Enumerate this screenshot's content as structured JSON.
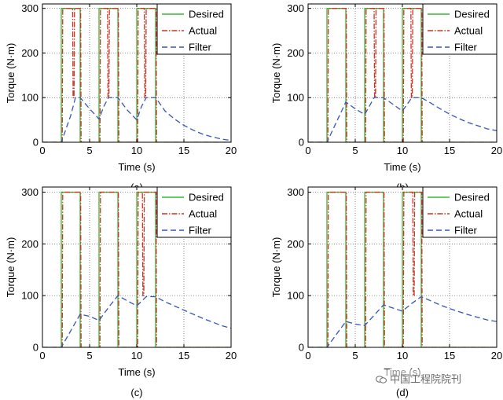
{
  "chart_data": [
    {
      "panel_label": "(a)",
      "type": "line",
      "xlabel": "Time (s)",
      "ylabel": "Torque (N·m)",
      "xlim": [
        0,
        20
      ],
      "ylim": [
        0,
        310
      ],
      "xticks": [
        0,
        5,
        10,
        15,
        20
      ],
      "yticks": [
        0,
        100,
        200,
        300
      ],
      "grid": true,
      "legend_position": "top-right",
      "series": [
        {
          "name": "Desired",
          "color": "#33bb33",
          "style": "solid",
          "x": [
            0,
            2,
            2,
            4,
            4,
            6,
            6,
            8,
            8,
            10,
            10,
            12,
            12,
            20
          ],
          "y": [
            0,
            0,
            300,
            300,
            0,
            0,
            300,
            300,
            0,
            0,
            300,
            300,
            0,
            0
          ]
        },
        {
          "name": "Actual",
          "color": "#cc3322",
          "style": "dashdot",
          "x": [
            0,
            2.1,
            2.15,
            3.2,
            3.25,
            3.35,
            3.4,
            4.05,
            4.1,
            6.1,
            6.15,
            6.9,
            6.95,
            7.05,
            7.1,
            8.05,
            8.1,
            10.1,
            10.15,
            10.8,
            10.85,
            10.95,
            11,
            12.05,
            12.1,
            20
          ],
          "y": [
            0,
            0,
            300,
            300,
            100,
            100,
            300,
            300,
            0,
            0,
            300,
            300,
            100,
            100,
            300,
            300,
            0,
            0,
            300,
            300,
            100,
            100,
            300,
            300,
            0,
            0
          ]
        },
        {
          "name": "Filter",
          "color": "#3355bb",
          "style": "dashed",
          "x": [
            0,
            2,
            3,
            3.5,
            4,
            5,
            6,
            6.5,
            7,
            8,
            9,
            10,
            10.5,
            11,
            12,
            13,
            14,
            15,
            16,
            17,
            18,
            19,
            20
          ],
          "y": [
            0,
            0,
            60,
            100,
            100,
            75,
            52,
            80,
            100,
            100,
            72,
            50,
            80,
            100,
            100,
            70,
            52,
            38,
            27,
            18,
            12,
            7,
            4
          ]
        }
      ]
    },
    {
      "panel_label": "(b)",
      "type": "line",
      "xlabel": "Time (s)",
      "ylabel": "Torque (N·m)",
      "xlim": [
        0,
        20
      ],
      "ylim": [
        0,
        310
      ],
      "xticks": [
        0,
        5,
        10,
        15,
        20
      ],
      "yticks": [
        0,
        100,
        200,
        300
      ],
      "grid": true,
      "legend_position": "top-right",
      "series": [
        {
          "name": "Desired",
          "color": "#33bb33",
          "style": "solid",
          "x": [
            0,
            2,
            2,
            4,
            4,
            6,
            6,
            8,
            8,
            10,
            10,
            12,
            12,
            20
          ],
          "y": [
            0,
            0,
            300,
            300,
            0,
            0,
            300,
            300,
            0,
            0,
            300,
            300,
            0,
            0
          ]
        },
        {
          "name": "Actual",
          "color": "#cc3322",
          "style": "dashdot",
          "x": [
            0,
            2.1,
            2.15,
            4.05,
            4.1,
            6.1,
            6.15,
            7,
            7.05,
            7.15,
            7.2,
            8.05,
            8.1,
            10.1,
            10.15,
            10.9,
            10.95,
            11.05,
            11.1,
            12.05,
            12.1,
            20
          ],
          "y": [
            0,
            0,
            300,
            300,
            0,
            0,
            300,
            300,
            100,
            100,
            300,
            300,
            0,
            0,
            300,
            300,
            100,
            100,
            300,
            300,
            0,
            0
          ]
        },
        {
          "name": "Filter",
          "color": "#3355bb",
          "style": "dashed",
          "x": [
            0,
            2,
            3,
            4,
            5,
            6,
            7,
            8,
            9,
            10,
            11,
            12,
            13,
            14,
            15,
            16,
            17,
            18,
            19,
            20
          ],
          "y": [
            0,
            0,
            45,
            90,
            75,
            62,
            100,
            100,
            85,
            70,
            100,
            100,
            88,
            75,
            63,
            53,
            44,
            37,
            30,
            26
          ]
        }
      ]
    },
    {
      "panel_label": "(c)",
      "type": "line",
      "xlabel": "Time (s)",
      "ylabel": "Torque (N·m)",
      "xlim": [
        0,
        20
      ],
      "ylim": [
        0,
        310
      ],
      "xticks": [
        0,
        5,
        10,
        15,
        20
      ],
      "yticks": [
        0,
        100,
        200,
        300
      ],
      "grid": true,
      "legend_position": "top-right",
      "series": [
        {
          "name": "Desired",
          "color": "#33bb33",
          "style": "solid",
          "x": [
            0,
            2,
            2,
            4,
            4,
            6,
            6,
            8,
            8,
            10,
            10,
            12,
            12,
            20
          ],
          "y": [
            0,
            0,
            300,
            300,
            0,
            0,
            300,
            300,
            0,
            0,
            300,
            300,
            0,
            0
          ]
        },
        {
          "name": "Actual",
          "color": "#cc3322",
          "style": "dashdot",
          "x": [
            0,
            2.1,
            2.15,
            4.05,
            4.1,
            6.1,
            6.15,
            8.05,
            8.1,
            10.1,
            10.15,
            10.6,
            10.65,
            10.75,
            10.8,
            12.05,
            12.1,
            20
          ],
          "y": [
            0,
            0,
            300,
            300,
            0,
            0,
            300,
            300,
            0,
            0,
            300,
            300,
            100,
            100,
            300,
            300,
            0,
            0
          ]
        },
        {
          "name": "Filter",
          "color": "#3355bb",
          "style": "dashed",
          "x": [
            0,
            2,
            3,
            4,
            5,
            6,
            7,
            8,
            9,
            10,
            11,
            12,
            13,
            14,
            15,
            16,
            17,
            18,
            19,
            20
          ],
          "y": [
            0,
            0,
            32,
            64,
            60,
            52,
            77,
            100,
            90,
            80,
            98,
            98,
            88,
            80,
            72,
            64,
            56,
            49,
            42,
            37
          ]
        }
      ]
    },
    {
      "panel_label": "(d)",
      "type": "line",
      "xlabel": "Time (s)",
      "ylabel": "Torque (N·m)",
      "xlim": [
        0,
        20
      ],
      "ylim": [
        0,
        310
      ],
      "xticks": [
        0,
        5,
        10,
        15,
        20
      ],
      "yticks": [
        0,
        100,
        200,
        300
      ],
      "grid": true,
      "legend_position": "top-right",
      "series": [
        {
          "name": "Desired",
          "color": "#33bb33",
          "style": "solid",
          "x": [
            0,
            2,
            2,
            4,
            4,
            6,
            6,
            8,
            8,
            10,
            10,
            12,
            12,
            20
          ],
          "y": [
            0,
            0,
            300,
            300,
            0,
            0,
            300,
            300,
            0,
            0,
            300,
            300,
            0,
            0
          ]
        },
        {
          "name": "Actual",
          "color": "#cc3322",
          "style": "dashdot",
          "x": [
            0,
            2.1,
            2.15,
            4.05,
            4.1,
            6.1,
            6.15,
            8.05,
            8.1,
            10.1,
            10.15,
            11.1,
            11.15,
            11.25,
            11.3,
            12.05,
            12.1,
            20
          ],
          "y": [
            0,
            0,
            300,
            300,
            0,
            0,
            300,
            300,
            0,
            0,
            300,
            300,
            100,
            100,
            300,
            300,
            0,
            0
          ]
        },
        {
          "name": "Filter",
          "color": "#3355bb",
          "style": "dashed",
          "x": [
            0,
            2,
            3,
            4,
            5,
            6,
            7,
            8,
            9,
            10,
            11,
            12,
            13,
            14,
            15,
            16,
            17,
            18,
            19,
            20
          ],
          "y": [
            0,
            0,
            25,
            50,
            45,
            42,
            62,
            82,
            76,
            70,
            85,
            98,
            90,
            82,
            75,
            69,
            63,
            58,
            53,
            50
          ]
        }
      ]
    }
  ],
  "watermark": {
    "text": "中国工程院院刊"
  }
}
